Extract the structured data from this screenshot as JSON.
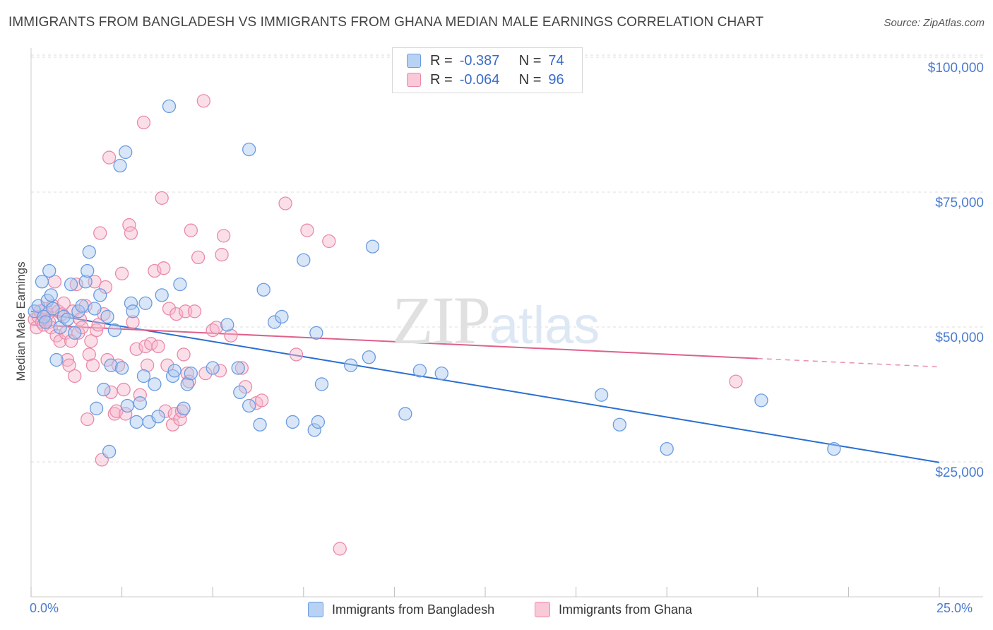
{
  "title": "IMMIGRANTS FROM BANGLADESH VS IMMIGRANTS FROM GHANA MEDIAN MALE EARNINGS CORRELATION CHART",
  "source": "Source: ZipAtlas.com",
  "watermark": {
    "zip": "ZIP",
    "atlas": "atlas"
  },
  "legend": {
    "r_label": "R =",
    "n_label": "N =",
    "bangladesh": {
      "r": "-0.387",
      "n": "74"
    },
    "ghana": {
      "r": "-0.064",
      "n": "96"
    }
  },
  "colors": {
    "blue_fill": "#a9c8f0",
    "blue_stroke": "#6b9be0",
    "blue_line": "#2a6fd0",
    "pink_fill": "#f6b8cb",
    "pink_stroke": "#ea8aa8",
    "pink_line": "#e0608a",
    "grid": "#dcdcdc",
    "tick_text": "#4a7bd0"
  },
  "chart_data": {
    "type": "scatter",
    "title": "IMMIGRANTS FROM BANGLADESH VS IMMIGRANTS FROM GHANA MEDIAN MALE EARNINGS CORRELATION CHART",
    "xlabel": "",
    "ylabel": "Median Male Earnings",
    "xlim": [
      0,
      25
    ],
    "ylim": [
      3000,
      103000
    ],
    "x_tick_labels": [
      "0.0%",
      "25.0%"
    ],
    "y_ticks": [
      25000,
      50000,
      75000,
      100000
    ],
    "y_tick_labels": [
      "$25,000",
      "$50,000",
      "$75,000",
      "$100,000"
    ],
    "series": [
      {
        "name": "Immigrants from Bangladesh",
        "color": "blue",
        "trend": {
          "x": [
            0,
            25
          ],
          "y": [
            55000,
            27000
          ],
          "dashed_from": null
        },
        "points": [
          [
            0.1,
            55000
          ],
          [
            0.2,
            56000
          ],
          [
            0.3,
            60500
          ],
          [
            0.35,
            54000
          ],
          [
            0.4,
            53000
          ],
          [
            0.45,
            57000
          ],
          [
            0.5,
            62500
          ],
          [
            0.55,
            58000
          ],
          [
            0.6,
            55500
          ],
          [
            0.7,
            46000
          ],
          [
            0.8,
            52000
          ],
          [
            0.9,
            54000
          ],
          [
            1.0,
            53500
          ],
          [
            1.1,
            60000
          ],
          [
            1.2,
            51000
          ],
          [
            1.3,
            55000
          ],
          [
            1.4,
            56000
          ],
          [
            1.5,
            60500
          ],
          [
            1.55,
            62500
          ],
          [
            1.6,
            66000
          ],
          [
            1.75,
            55500
          ],
          [
            1.8,
            37000
          ],
          [
            1.9,
            58000
          ],
          [
            2.0,
            40500
          ],
          [
            2.1,
            54000
          ],
          [
            2.15,
            29000
          ],
          [
            2.2,
            45000
          ],
          [
            2.3,
            51500
          ],
          [
            2.45,
            82000
          ],
          [
            2.5,
            44500
          ],
          [
            2.6,
            84500
          ],
          [
            2.65,
            37500
          ],
          [
            2.75,
            56500
          ],
          [
            2.8,
            55000
          ],
          [
            2.9,
            34500
          ],
          [
            3.0,
            38000
          ],
          [
            3.1,
            43000
          ],
          [
            3.15,
            56500
          ],
          [
            3.25,
            34500
          ],
          [
            3.4,
            41500
          ],
          [
            3.5,
            35500
          ],
          [
            3.6,
            58000
          ],
          [
            3.8,
            93000
          ],
          [
            3.9,
            43000
          ],
          [
            3.95,
            44000
          ],
          [
            4.1,
            60000
          ],
          [
            4.2,
            37000
          ],
          [
            4.3,
            41500
          ],
          [
            4.4,
            43500
          ],
          [
            5.0,
            44500
          ],
          [
            5.4,
            52500
          ],
          [
            5.7,
            44500
          ],
          [
            5.75,
            40000
          ],
          [
            6.0,
            85000
          ],
          [
            6.0,
            37500
          ],
          [
            6.3,
            34000
          ],
          [
            6.4,
            59000
          ],
          [
            6.7,
            53000
          ],
          [
            6.9,
            54000
          ],
          [
            7.2,
            34500
          ],
          [
            7.5,
            64500
          ],
          [
            7.8,
            33000
          ],
          [
            7.9,
            34500
          ],
          [
            7.85,
            51000
          ],
          [
            8.0,
            41500
          ],
          [
            8.8,
            45000
          ],
          [
            9.3,
            46500
          ],
          [
            9.4,
            67000
          ],
          [
            10.3,
            36000
          ],
          [
            10.7,
            44000
          ],
          [
            11.3,
            43500
          ],
          [
            15.7,
            39500
          ],
          [
            16.2,
            34000
          ],
          [
            17.5,
            29500
          ],
          [
            20.1,
            38500
          ],
          [
            22.1,
            29500
          ]
        ]
      },
      {
        "name": "Immigrants from Ghana",
        "color": "pink",
        "trend": {
          "x": [
            0,
            25
          ],
          "y": [
            52500,
            44700
          ],
          "dashed_from": 20
        },
        "points": [
          [
            0.1,
            53500
          ],
          [
            0.15,
            52000
          ],
          [
            0.2,
            54000
          ],
          [
            0.25,
            55000
          ],
          [
            0.3,
            53000
          ],
          [
            0.35,
            52500
          ],
          [
            0.4,
            55500
          ],
          [
            0.45,
            54500
          ],
          [
            0.5,
            53000
          ],
          [
            0.55,
            52000
          ],
          [
            0.6,
            56000
          ],
          [
            0.65,
            60500
          ],
          [
            0.7,
            50500
          ],
          [
            0.75,
            55000
          ],
          [
            0.8,
            49500
          ],
          [
            0.85,
            54500
          ],
          [
            0.9,
            56500
          ],
          [
            0.95,
            51000
          ],
          [
            1.0,
            46000
          ],
          [
            1.05,
            45000
          ],
          [
            1.1,
            49500
          ],
          [
            1.15,
            55000
          ],
          [
            1.2,
            43000
          ],
          [
            1.25,
            60000
          ],
          [
            1.3,
            51000
          ],
          [
            1.35,
            53500
          ],
          [
            1.4,
            52000
          ],
          [
            1.5,
            56000
          ],
          [
            1.55,
            35000
          ],
          [
            1.6,
            47000
          ],
          [
            1.65,
            49500
          ],
          [
            1.7,
            45000
          ],
          [
            1.75,
            60500
          ],
          [
            1.8,
            51500
          ],
          [
            1.85,
            52500
          ],
          [
            1.9,
            69500
          ],
          [
            1.95,
            27500
          ],
          [
            2.0,
            54500
          ],
          [
            2.05,
            59500
          ],
          [
            2.1,
            46000
          ],
          [
            2.15,
            83500
          ],
          [
            2.2,
            40000
          ],
          [
            2.3,
            36000
          ],
          [
            2.35,
            36500
          ],
          [
            2.4,
            45000
          ],
          [
            2.5,
            62000
          ],
          [
            2.55,
            40500
          ],
          [
            2.6,
            36000
          ],
          [
            2.7,
            71000
          ],
          [
            2.75,
            69500
          ],
          [
            2.8,
            53000
          ],
          [
            2.9,
            48000
          ],
          [
            3.0,
            39500
          ],
          [
            3.1,
            90000
          ],
          [
            3.15,
            48500
          ],
          [
            3.2,
            45000
          ],
          [
            3.3,
            49000
          ],
          [
            3.4,
            62500
          ],
          [
            3.5,
            48500
          ],
          [
            3.6,
            76000
          ],
          [
            3.65,
            63000
          ],
          [
            3.7,
            36500
          ],
          [
            3.75,
            45000
          ],
          [
            3.8,
            55500
          ],
          [
            3.9,
            34000
          ],
          [
            3.95,
            36000
          ],
          [
            4.0,
            54500
          ],
          [
            4.1,
            35000
          ],
          [
            4.15,
            36500
          ],
          [
            4.2,
            47000
          ],
          [
            4.25,
            55000
          ],
          [
            4.3,
            43500
          ],
          [
            4.35,
            42000
          ],
          [
            4.4,
            70000
          ],
          [
            4.5,
            55000
          ],
          [
            4.6,
            65000
          ],
          [
            4.75,
            94000
          ],
          [
            4.8,
            43500
          ],
          [
            5.0,
            51500
          ],
          [
            5.1,
            52000
          ],
          [
            5.2,
            44000
          ],
          [
            5.25,
            65500
          ],
          [
            5.3,
            69000
          ],
          [
            5.5,
            50500
          ],
          [
            5.8,
            44500
          ],
          [
            5.9,
            41000
          ],
          [
            6.2,
            38000
          ],
          [
            6.35,
            38500
          ],
          [
            7.0,
            75000
          ],
          [
            7.3,
            47000
          ],
          [
            7.6,
            70000
          ],
          [
            8.2,
            68000
          ],
          [
            8.5,
            11000
          ],
          [
            19.4,
            42000
          ]
        ]
      }
    ]
  },
  "bottom_legend": {
    "bangladesh": "Immigrants from Bangladesh",
    "ghana": "Immigrants from Ghana"
  }
}
